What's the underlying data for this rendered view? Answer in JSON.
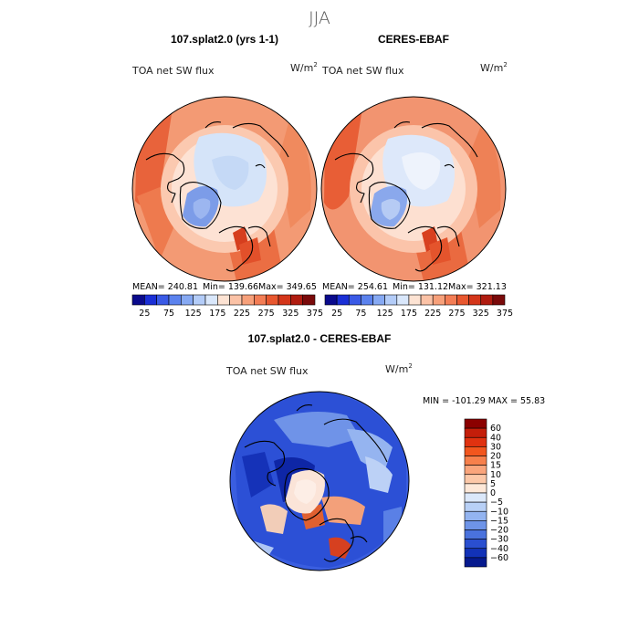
{
  "season_title": "JJA",
  "panels": [
    {
      "title": "107.splat2.0 (yrs 1-1)",
      "variable": "TOA net SW flux",
      "units_base": "W/m",
      "units_exp": "2",
      "stats": {
        "mean": "MEAN= 240.81",
        "min": "Min= 139.66",
        "max": "Max= 349.65"
      }
    },
    {
      "title": "CERES-EBAF",
      "variable": "TOA net SW flux",
      "units_base": "W/m",
      "units_exp": "2",
      "stats": {
        "mean": "MEAN= 254.61",
        "min": "Min= 131.12",
        "max": "Max= 321.13"
      }
    }
  ],
  "colorbar_top": {
    "labels": [
      "25",
      "75",
      "125",
      "175",
      "225",
      "275",
      "325",
      "375"
    ],
    "colors": [
      "#0a0a8c",
      "#1a2fd6",
      "#3a5ae6",
      "#5b82ee",
      "#86a9f3",
      "#b3ccf8",
      "#d9e7fb",
      "#fde3d3",
      "#fbc2a6",
      "#f7a07a",
      "#f37d55",
      "#e8572f",
      "#d4361a",
      "#b01c10",
      "#7a0a0a"
    ]
  },
  "diff_panel": {
    "title": "107.splat2.0 - CERES-EBAF",
    "variable": "TOA net SW flux",
    "units_base": "W/m",
    "units_exp": "2",
    "minmax": "MIN = -101.29 MAX =  55.83"
  },
  "colorbar_diff": {
    "labels": [
      "60",
      "40",
      "30",
      "20",
      "15",
      "10",
      "5",
      "0",
      "−5",
      "−10",
      "−15",
      "−20",
      "−30",
      "−40",
      "−60"
    ],
    "colors": [
      "#8b0000",
      "#c41e0a",
      "#e03210",
      "#f2561e",
      "#f7804c",
      "#faa57c",
      "#fcc8a8",
      "#fde8d8",
      "#dbe8fa",
      "#b8d0f6",
      "#93b4f0",
      "#6e94e8",
      "#4a72dd",
      "#2a4fd0",
      "#1232b8",
      "#061a8e"
    ]
  },
  "colors": {
    "land_contour": "#000000",
    "polar_ice": "#cfe0f7",
    "greenland_ice": "#7c9ce8",
    "warm_fill": "#f5a585",
    "hot_fill": "#e9633a",
    "diff_blue": "#2246d2"
  }
}
